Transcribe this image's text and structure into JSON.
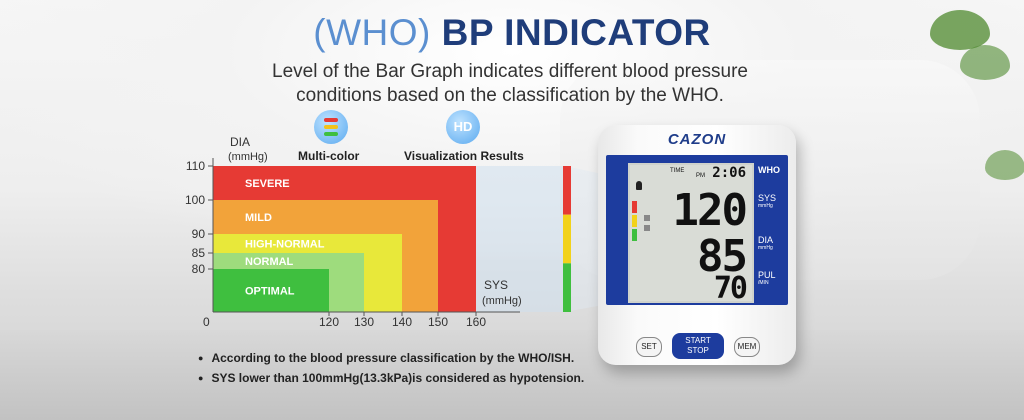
{
  "header": {
    "title_prefix": "(WHO)",
    "title_main": "BP INDICATOR",
    "subtitle_line1": "Level of the Bar Graph indicates different blood pressure",
    "subtitle_line2": "conditions based on the classification by the WHO."
  },
  "features": [
    {
      "label": "Multi-color",
      "icon": "multicolor-bars-icon"
    },
    {
      "label": "Visualization Results",
      "icon": "hd-icon",
      "icon_text": "HD"
    }
  ],
  "chart_data": {
    "type": "area",
    "ylabel": "DIA",
    "ylabel_unit": "(mmHg)",
    "xlabel": "SYS",
    "xlabel_unit": "(mmHg)",
    "origin_label": "0",
    "x_ticks": [
      120,
      130,
      140,
      150,
      160
    ],
    "y_ticks": [
      80,
      85,
      90,
      100,
      110
    ],
    "xlim": [
      0,
      160
    ],
    "ylim": [
      0,
      110
    ],
    "zones": [
      {
        "name": "SEVERE",
        "sys_max": 160,
        "dia_max": 110,
        "color": "#e63a34"
      },
      {
        "name": "MILD",
        "sys_max": 150,
        "dia_max": 100,
        "color": "#f2a33a"
      },
      {
        "name": "HIGH-NORMAL",
        "sys_max": 140,
        "dia_max": 90,
        "color": "#e8e83a"
      },
      {
        "name": "NORMAL",
        "sys_max": 130,
        "dia_max": 85,
        "color": "#9edc7d"
      },
      {
        "name": "OPTIMAL",
        "sys_max": 120,
        "dia_max": 80,
        "color": "#3fbf3f"
      }
    ],
    "indicator_bar_colors": [
      "#e63a34",
      "#f2d21a",
      "#3fbf3f"
    ]
  },
  "notes": [
    "According to the blood pressure classification by the WHO/ISH.",
    "SYS lower than 100mmHg(13.3kPa)is considered as hypotension."
  ],
  "device": {
    "brand": "CAZON",
    "time": "2:06",
    "time_label": "TIME",
    "pm_label": "PM",
    "sys_value": "120",
    "dia_value": "85",
    "pulse_value": "70",
    "who_label": "WHO",
    "sys_label": "SYS",
    "sys_unit": "mmHg",
    "dia_label": "DIA",
    "dia_unit": "mmHg",
    "pul_label": "PUL",
    "pul_unit": "/MIN",
    "buttons": {
      "set": "SET",
      "start": "START",
      "stop": "STOP",
      "mem": "MEM"
    }
  },
  "colors": {
    "title_blue": "#1f3d7a",
    "who_blue": "#5b8fd0",
    "device_blue": "#1d3c9e"
  }
}
